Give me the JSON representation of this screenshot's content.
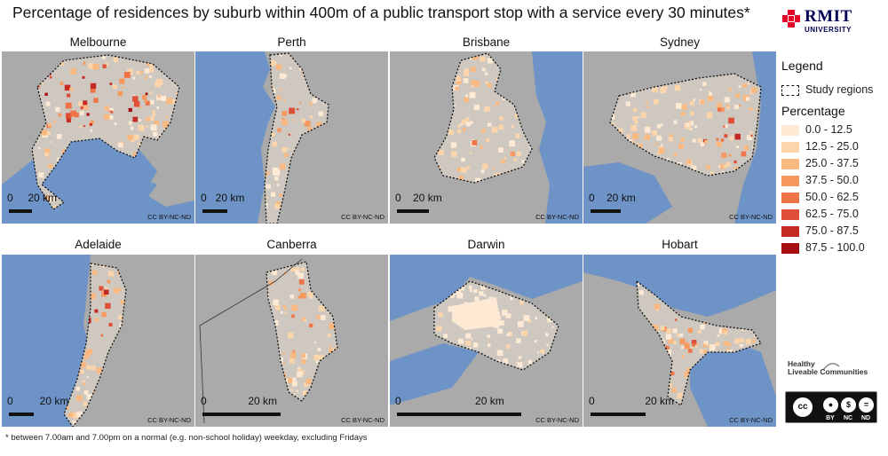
{
  "header": {
    "title": "Percentage of residences by suburb within 400m of a public transport stop with a service every 30 minutes*",
    "logo_name": "RMIT",
    "logo_sub": "UNIVERSITY"
  },
  "panels": [
    {
      "name": "Melbourne",
      "scale_label": "0     20 km",
      "license": "CC BY-NC-ND"
    },
    {
      "name": "Perth",
      "scale_label": "0   20 km",
      "license": "CC BY-NC-ND"
    },
    {
      "name": "Brisbane",
      "scale_label": "0    20 km",
      "license": "CC BY-NC-ND"
    },
    {
      "name": "Sydney",
      "scale_label": "0    20 km",
      "license": "CC BY-NC-ND"
    },
    {
      "name": "Adelaide",
      "scale_label": "0         20 km",
      "license": "CC BY-NC-ND"
    },
    {
      "name": "Canberra",
      "scale_label": "0              20 km",
      "license": "CC BY-NC-ND"
    },
    {
      "name": "Darwin",
      "scale_label": "0                         20 km",
      "license": "CC BY-NC-ND"
    },
    {
      "name": "Hobart",
      "scale_label": "0                 20 km",
      "license": "CC BY-NC-ND"
    }
  ],
  "legend": {
    "title": "Legend",
    "study_regions": "Study regions",
    "percentage_title": "Percentage",
    "classes": [
      {
        "label": "0.0 - 12.5",
        "color": "#fde9d4"
      },
      {
        "label": "12.5 - 25.0",
        "color": "#fcd5ab"
      },
      {
        "label": "25.0 - 37.5",
        "color": "#fbb982"
      },
      {
        "label": "37.5 - 50.0",
        "color": "#f7985f"
      },
      {
        "label": "50.0 - 62.5",
        "color": "#ee7448"
      },
      {
        "label": "62.5 - 75.0",
        "color": "#df4f37"
      },
      {
        "label": "75.0 - 87.5",
        "color": "#c52a25"
      },
      {
        "label": "87.5 - 100.0",
        "color": "#a50d10"
      }
    ]
  },
  "colors": {
    "water": "#6d93c7",
    "land": "#aaaaaa",
    "study_boundary": "#111111"
  },
  "branding": {
    "hlc_line1": "Healthy",
    "hlc_line2": "Liveable Communities",
    "cc_by": "BY",
    "cc_nc": "NC",
    "cc_nd": "ND"
  },
  "footnote": "* between 7.00am and 7.00pm on a normal (e.g. non-school holiday) weekday, excluding Fridays"
}
